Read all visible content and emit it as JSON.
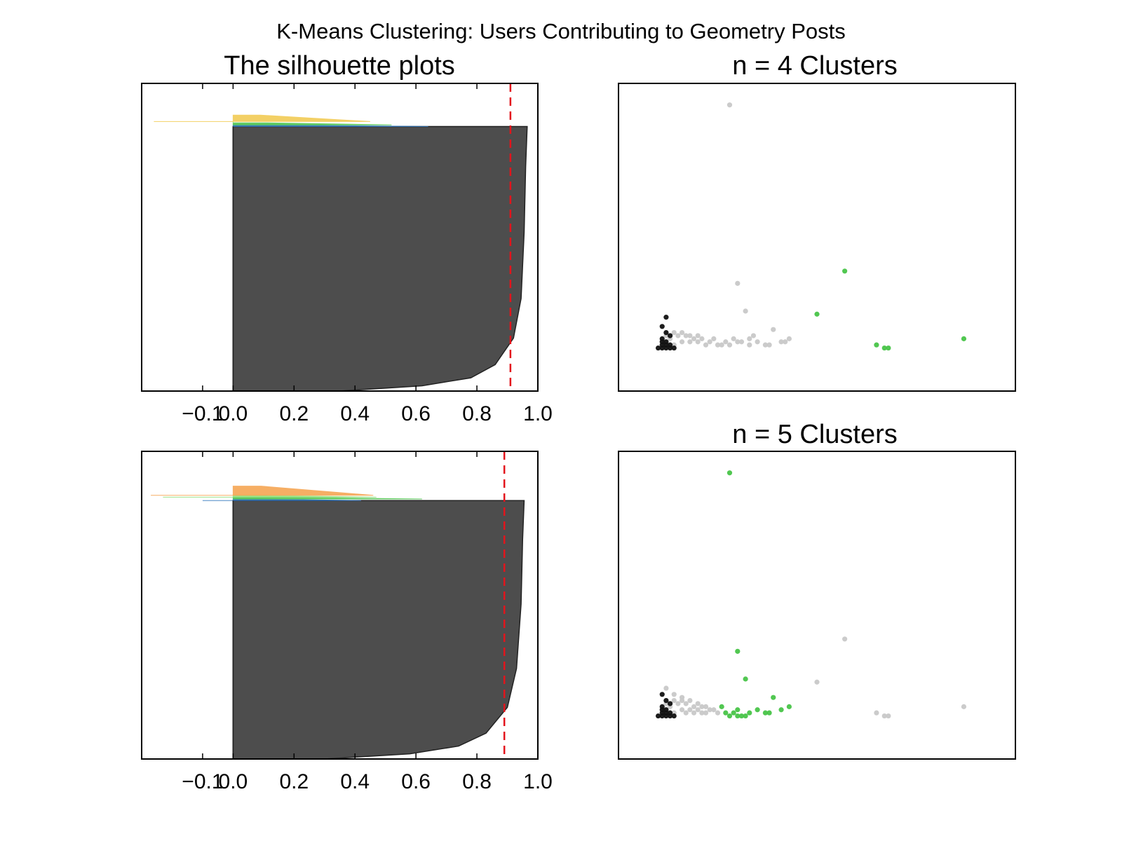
{
  "figure": {
    "suptitle": "K-Means Clustering: Users Contributing to Geometry Posts"
  },
  "colors": {
    "red_line": "#e3141c",
    "dark_cluster": "#4d4d4d",
    "yellow": "#f2c84b",
    "orange": "#f5a04a",
    "green": "#48c448",
    "light_green": "#8fe07a",
    "blue": "#2c75bd",
    "light_gray": "#c8c8c8",
    "black": "#111111"
  },
  "chart_data": [
    {
      "type": "area",
      "title": "The silhouette plots",
      "xlabel": "",
      "ylabel": "",
      "xlim": [
        -0.3,
        1.0
      ],
      "ylim": [
        0,
        1
      ],
      "xticks": [
        -0.1,
        0.0,
        0.2,
        0.4,
        0.6,
        0.8,
        1.0
      ],
      "xtick_labels": [
        "−0.1",
        "0.0",
        "0.2",
        "0.4",
        "0.6",
        "0.8",
        "1.0"
      ],
      "average_silhouette": 0.91,
      "clusters": [
        {
          "color": "dark_cluster",
          "y_range": [
            0.0,
            0.86
          ],
          "max_width": 0.96,
          "profile": [
            [
              0.0,
              0.35
            ],
            [
              0.02,
              0.62
            ],
            [
              0.05,
              0.78
            ],
            [
              0.1,
              0.86
            ],
            [
              0.2,
              0.92
            ],
            [
              0.35,
              0.945
            ],
            [
              0.6,
              0.955
            ],
            [
              0.85,
              0.96
            ],
            [
              1.0,
              0.965
            ]
          ]
        },
        {
          "color": "blue",
          "y_range": [
            0.86,
            0.865
          ],
          "max_width": 0.64
        },
        {
          "color": "green",
          "y_range": [
            0.865,
            0.872
          ],
          "max_width": 0.52
        },
        {
          "color": "light_green",
          "y_range": [
            0.872,
            0.876
          ],
          "max_width": 0.0
        },
        {
          "color": "yellow",
          "y_range": [
            0.876,
            0.897
          ],
          "max_width": 0.45,
          "min_width": -0.26
        }
      ]
    },
    {
      "type": "scatter",
      "title": "n = 4 Clusters",
      "xlabel": "",
      "ylabel": "",
      "xlim": [
        0,
        100
      ],
      "ylim": [
        0,
        100
      ],
      "points": {
        "light_gray": [
          [
            28,
            93
          ],
          [
            30,
            35
          ],
          [
            32,
            26
          ],
          [
            34,
            18
          ],
          [
            39,
            20
          ],
          [
            43,
            17
          ],
          [
            42,
            16
          ],
          [
            37,
            15
          ],
          [
            33,
            15
          ],
          [
            30,
            16
          ],
          [
            27,
            16
          ],
          [
            25,
            15
          ],
          [
            22,
            15
          ],
          [
            20,
            16
          ],
          [
            18,
            16
          ],
          [
            16,
            16
          ],
          [
            14,
            15
          ],
          [
            13,
            17
          ],
          [
            15,
            18
          ],
          [
            17,
            18
          ],
          [
            19,
            17
          ],
          [
            21,
            17
          ],
          [
            23,
            16
          ],
          [
            26,
            15
          ],
          [
            28,
            15
          ],
          [
            31,
            16
          ],
          [
            35,
            16
          ],
          [
            38,
            15
          ],
          [
            41,
            16
          ],
          [
            12,
            16
          ],
          [
            12,
            18
          ],
          [
            14,
            19
          ],
          [
            16,
            19
          ],
          [
            18,
            18
          ],
          [
            20,
            18
          ],
          [
            24,
            17
          ],
          [
            29,
            17
          ],
          [
            33,
            17
          ],
          [
            11,
            16
          ],
          [
            12,
            19
          ]
        ],
        "green": [
          [
            57,
            39
          ],
          [
            50,
            25
          ],
          [
            87,
            17
          ],
          [
            65,
            15
          ],
          [
            67,
            14
          ],
          [
            68,
            14
          ]
        ],
        "black": [
          [
            12,
            24
          ],
          [
            11,
            21
          ],
          [
            12,
            19
          ],
          [
            13,
            18
          ],
          [
            11,
            17
          ],
          [
            11,
            16
          ],
          [
            12,
            15
          ],
          [
            13,
            15
          ],
          [
            11,
            15
          ],
          [
            12,
            14
          ],
          [
            10,
            14
          ],
          [
            13,
            14
          ],
          [
            14,
            14
          ],
          [
            12,
            16
          ],
          [
            11,
            14
          ]
        ]
      }
    },
    {
      "type": "area",
      "title": "",
      "xlabel": "",
      "ylabel": "",
      "xlim": [
        -0.3,
        1.0
      ],
      "ylim": [
        0,
        1
      ],
      "xticks": [
        -0.1,
        0.0,
        0.2,
        0.4,
        0.6,
        0.8,
        1.0
      ],
      "xtick_labels": [
        "−0.1",
        "0.0",
        "0.2",
        "0.4",
        "0.6",
        "0.8",
        "1.0"
      ],
      "average_silhouette": 0.89,
      "clusters": [
        {
          "color": "dark_cluster",
          "y_range": [
            0.0,
            0.84
          ],
          "max_width": 0.96,
          "profile": [
            [
              0.0,
              0.3
            ],
            [
              0.02,
              0.58
            ],
            [
              0.05,
              0.74
            ],
            [
              0.1,
              0.83
            ],
            [
              0.2,
              0.9
            ],
            [
              0.35,
              0.93
            ],
            [
              0.6,
              0.945
            ],
            [
              0.85,
              0.95
            ],
            [
              1.0,
              0.955
            ]
          ]
        },
        {
          "color": "blue",
          "y_range": [
            0.84,
            0.845
          ],
          "max_width": 0.42,
          "min_width": -0.1
        },
        {
          "color": "green",
          "y_range": [
            0.845,
            0.851
          ],
          "max_width": 0.62
        },
        {
          "color": "light_green",
          "y_range": [
            0.851,
            0.857
          ],
          "max_width": 0.47,
          "min_width": -0.23
        },
        {
          "color": "orange",
          "y_range": [
            0.857,
            0.887
          ],
          "max_width": 0.46,
          "min_width": -0.27
        }
      ]
    },
    {
      "type": "scatter",
      "title": "n = 5 Clusters",
      "xlabel": "",
      "ylabel": "",
      "xlim": [
        0,
        100
      ],
      "ylim": [
        0,
        100
      ],
      "points": {
        "green": [
          [
            28,
            93
          ],
          [
            30,
            35
          ],
          [
            32,
            26
          ],
          [
            39,
            20
          ],
          [
            43,
            17
          ],
          [
            37,
            15
          ],
          [
            33,
            15
          ],
          [
            35,
            16
          ],
          [
            41,
            16
          ],
          [
            38,
            15
          ],
          [
            30,
            16
          ],
          [
            26,
            17
          ],
          [
            28,
            14
          ],
          [
            31,
            14
          ],
          [
            32,
            14
          ],
          [
            29,
            15
          ],
          [
            27,
            15
          ],
          [
            30,
            14
          ]
        ],
        "light_gray": [
          [
            57,
            39
          ],
          [
            50,
            25
          ],
          [
            87,
            17
          ],
          [
            65,
            15
          ],
          [
            67,
            14
          ],
          [
            68,
            14
          ],
          [
            12,
            23
          ],
          [
            14,
            21
          ],
          [
            16,
            20
          ],
          [
            18,
            19
          ],
          [
            20,
            18
          ],
          [
            22,
            17
          ],
          [
            24,
            16
          ],
          [
            25,
            15
          ],
          [
            22,
            15
          ],
          [
            20,
            16
          ],
          [
            18,
            16
          ],
          [
            16,
            16
          ],
          [
            14,
            15
          ],
          [
            13,
            17
          ],
          [
            15,
            18
          ],
          [
            17,
            18
          ],
          [
            19,
            17
          ],
          [
            21,
            17
          ],
          [
            23,
            16
          ],
          [
            12,
            16
          ],
          [
            12,
            18
          ],
          [
            14,
            19
          ],
          [
            16,
            19
          ],
          [
            11,
            16
          ],
          [
            12,
            19
          ],
          [
            17,
            15
          ],
          [
            19,
            15
          ],
          [
            21,
            15
          ]
        ],
        "black": [
          [
            11,
            21
          ],
          [
            12,
            19
          ],
          [
            13,
            18
          ],
          [
            11,
            17
          ],
          [
            11,
            16
          ],
          [
            12,
            15
          ],
          [
            13,
            15
          ],
          [
            11,
            15
          ],
          [
            12,
            14
          ],
          [
            10,
            14
          ],
          [
            13,
            14
          ],
          [
            14,
            14
          ],
          [
            12,
            16
          ],
          [
            11,
            14
          ]
        ]
      }
    }
  ]
}
